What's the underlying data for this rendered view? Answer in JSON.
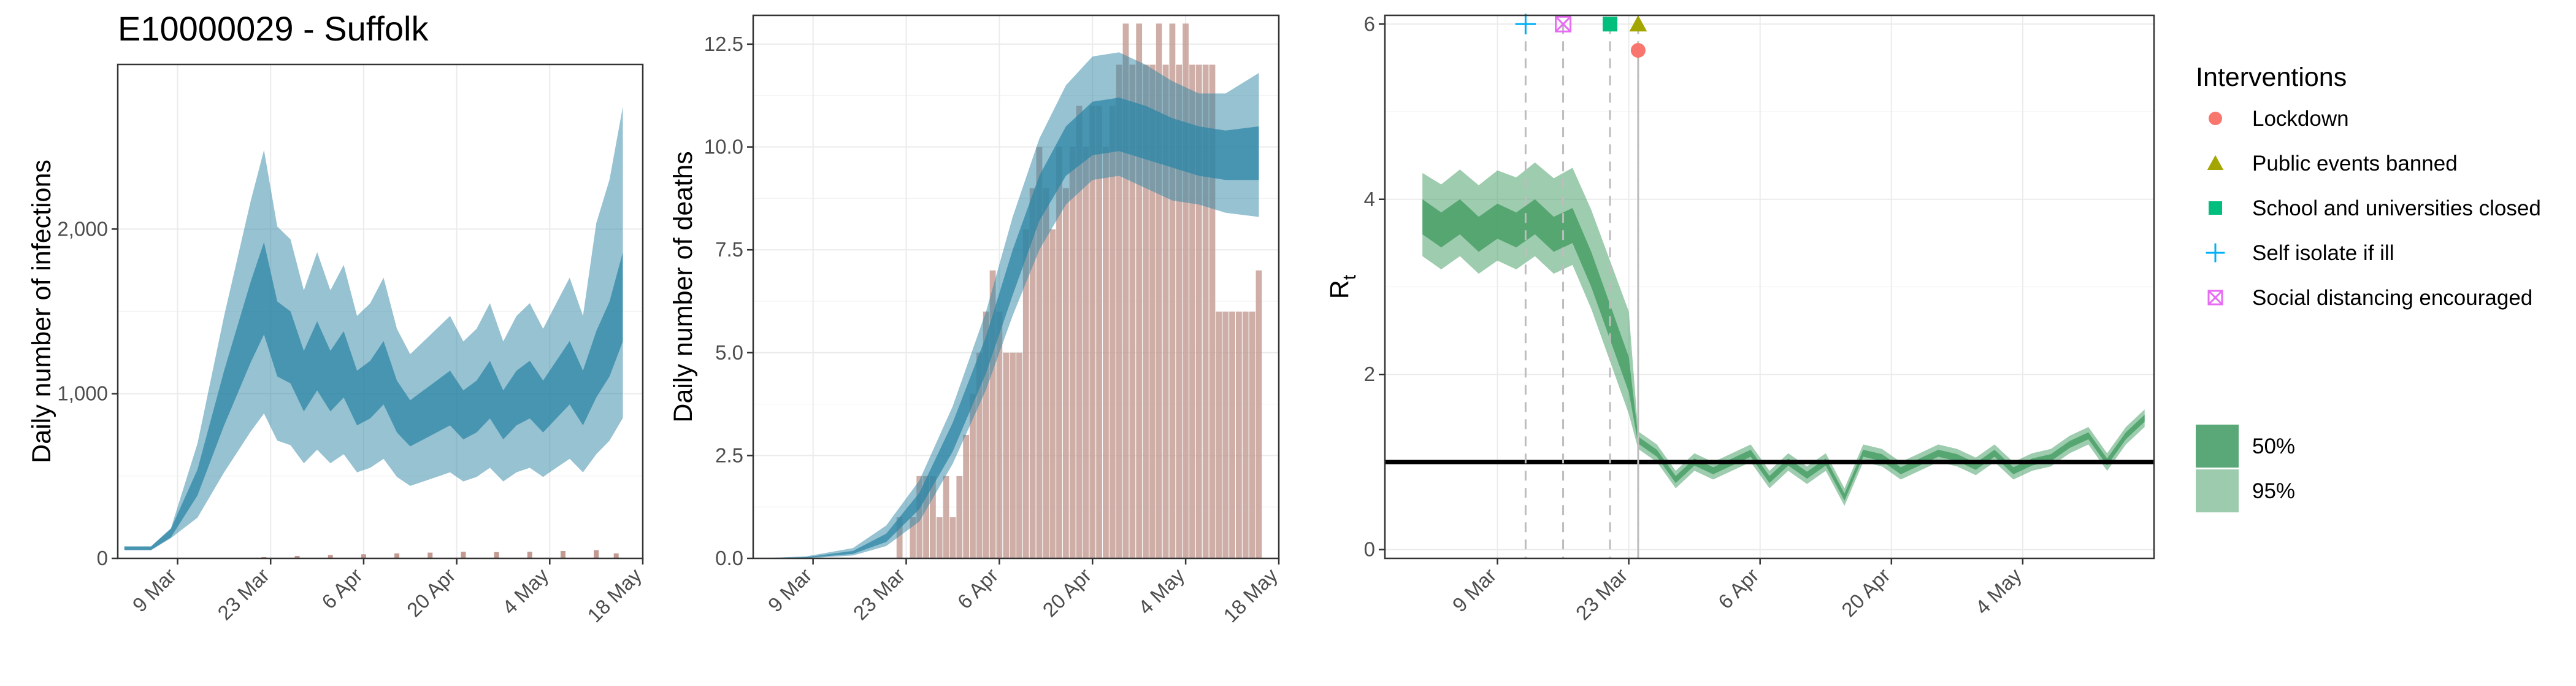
{
  "figure": {
    "title": "E10000029 - Suffolk",
    "x_tick_labels_left": [
      "9 Mar",
      "23 Mar",
      "6 Apr",
      "20 Apr",
      "4 May",
      "18 May"
    ],
    "x_tick_labels_right": [
      "9 Mar",
      "23 Mar",
      "6 Apr",
      "20 Apr",
      "4 May"
    ]
  },
  "legend": {
    "interventions_title": "Interventions",
    "items": [
      {
        "label": "Lockdown",
        "shape": "circle",
        "color": "#F8766D"
      },
      {
        "label": "Public events banned",
        "shape": "triangle",
        "color": "#A3A500"
      },
      {
        "label": "School and universities closed",
        "shape": "square",
        "color": "#00BF7D"
      },
      {
        "label": "Self isolate if ill",
        "shape": "plus",
        "color": "#00B0F6"
      },
      {
        "label": "Social distancing encouraged",
        "shape": "boxed-x",
        "color": "#E76BF3"
      }
    ],
    "bands": [
      {
        "label": "50%",
        "color": "#5aa878"
      },
      {
        "label": "95%",
        "color": "#9ccbad"
      }
    ]
  },
  "colors": {
    "infections_band": "#2e86a6",
    "deaths_band": "#2e86a6",
    "bars": "#c29a91",
    "rt_band": "#3d9a5e",
    "reference_line": "#000000",
    "intervention_line": "#bdbdbd"
  },
  "chart_data": [
    {
      "type": "area",
      "ylabel": "Daily number of infections",
      "xlim": [
        "2020-02-29",
        "2020-05-18"
      ],
      "ylim": [
        0,
        3000
      ],
      "yticks": [
        0,
        1000,
        2000
      ],
      "ytick_labels": [
        "0",
        "1,000",
        "2,000"
      ],
      "median": [
        [
          "2020-03-01",
          60
        ],
        [
          "2020-03-05",
          60
        ],
        [
          "2020-03-08",
          150
        ],
        [
          "2020-03-12",
          450
        ],
        [
          "2020-03-16",
          950
        ],
        [
          "2020-03-20",
          1400
        ],
        [
          "2020-03-22",
          1600
        ],
        [
          "2020-03-24",
          1300
        ],
        [
          "2020-03-26",
          1250
        ],
        [
          "2020-03-28",
          1050
        ],
        [
          "2020-03-30",
          1200
        ],
        [
          "2020-04-01",
          1050
        ],
        [
          "2020-04-03",
          1150
        ],
        [
          "2020-04-05",
          950
        ],
        [
          "2020-04-07",
          1000
        ],
        [
          "2020-04-09",
          1100
        ],
        [
          "2020-04-11",
          900
        ],
        [
          "2020-04-13",
          800
        ],
        [
          "2020-04-15",
          850
        ],
        [
          "2020-04-17",
          900
        ],
        [
          "2020-04-19",
          950
        ],
        [
          "2020-04-21",
          850
        ],
        [
          "2020-04-23",
          900
        ],
        [
          "2020-04-25",
          1000
        ],
        [
          "2020-04-27",
          850
        ],
        [
          "2020-04-29",
          950
        ],
        [
          "2020-05-01",
          1000
        ],
        [
          "2020-05-03",
          900
        ],
        [
          "2020-05-05",
          1000
        ],
        [
          "2020-05-07",
          1100
        ],
        [
          "2020-05-09",
          950
        ],
        [
          "2020-05-11",
          1150
        ],
        [
          "2020-05-13",
          1300
        ],
        [
          "2020-05-15",
          1550
        ]
      ],
      "band95_rel": [
        0.45,
        0.55
      ],
      "band50_rel": [
        0.15,
        0.2
      ],
      "bars": [
        [
          "2020-03-22",
          8
        ],
        [
          "2020-03-27",
          15
        ],
        [
          "2020-04-01",
          20
        ],
        [
          "2020-04-06",
          25
        ],
        [
          "2020-04-11",
          30
        ],
        [
          "2020-04-16",
          35
        ],
        [
          "2020-04-21",
          40
        ],
        [
          "2020-04-26",
          38
        ],
        [
          "2020-05-01",
          40
        ],
        [
          "2020-05-06",
          45
        ],
        [
          "2020-05-11",
          50
        ],
        [
          "2020-05-14",
          30
        ]
      ]
    },
    {
      "type": "area",
      "ylabel": "Daily number of deaths",
      "xlim": [
        "2020-02-29",
        "2020-05-18"
      ],
      "ylim": [
        0,
        13.2
      ],
      "yticks": [
        0,
        2.5,
        5,
        7.5,
        10,
        12.5
      ],
      "ytick_labels": [
        "0.0",
        "2.5",
        "5.0",
        "7.5",
        "10.0",
        "12.5"
      ],
      "median": [
        [
          "2020-03-01",
          0.0
        ],
        [
          "2020-03-08",
          0.02
        ],
        [
          "2020-03-15",
          0.15
        ],
        [
          "2020-03-20",
          0.5
        ],
        [
          "2020-03-25",
          1.4
        ],
        [
          "2020-03-30",
          3.0
        ],
        [
          "2020-04-04",
          5.0
        ],
        [
          "2020-04-08",
          7.0
        ],
        [
          "2020-04-12",
          8.8
        ],
        [
          "2020-04-16",
          9.9
        ],
        [
          "2020-04-20",
          10.5
        ],
        [
          "2020-04-24",
          10.6
        ],
        [
          "2020-04-28",
          10.4
        ],
        [
          "2020-05-02",
          10.1
        ],
        [
          "2020-05-06",
          9.9
        ],
        [
          "2020-05-10",
          9.8
        ],
        [
          "2020-05-15",
          9.9
        ]
      ],
      "upper95": [
        0.0,
        0.05,
        0.25,
        0.8,
        1.9,
        3.7,
        6.0,
        8.3,
        10.2,
        11.5,
        12.2,
        12.3,
        12.0,
        11.6,
        11.3,
        11.3,
        11.8
      ],
      "lower95": [
        0.0,
        0.0,
        0.07,
        0.3,
        0.9,
        2.3,
        4.1,
        5.9,
        7.5,
        8.6,
        9.2,
        9.3,
        9.0,
        8.7,
        8.6,
        8.4,
        8.3
      ],
      "upper50": [
        0.0,
        0.03,
        0.18,
        0.6,
        1.6,
        3.3,
        5.4,
        7.5,
        9.3,
        10.5,
        11.1,
        11.2,
        11.0,
        10.7,
        10.5,
        10.4,
        10.5
      ],
      "lower50": [
        0.0,
        0.01,
        0.11,
        0.4,
        1.2,
        2.6,
        4.5,
        6.4,
        8.2,
        9.3,
        9.8,
        9.9,
        9.7,
        9.5,
        9.3,
        9.2,
        9.2
      ],
      "bars": [
        [
          "2020-03-22",
          1
        ],
        [
          "2020-03-23",
          0
        ],
        [
          "2020-03-24",
          1
        ],
        [
          "2020-03-25",
          2
        ],
        [
          "2020-03-26",
          2
        ],
        [
          "2020-03-27",
          2
        ],
        [
          "2020-03-28",
          1
        ],
        [
          "2020-03-29",
          2
        ],
        [
          "2020-03-30",
          1
        ],
        [
          "2020-03-31",
          2
        ],
        [
          "2020-04-01",
          3
        ],
        [
          "2020-04-02",
          4
        ],
        [
          "2020-04-03",
          5
        ],
        [
          "2020-04-04",
          6
        ],
        [
          "2020-04-05",
          7
        ],
        [
          "2020-04-06",
          6
        ],
        [
          "2020-04-07",
          5
        ],
        [
          "2020-04-08",
          5
        ],
        [
          "2020-04-09",
          5
        ],
        [
          "2020-04-10",
          8
        ],
        [
          "2020-04-11",
          9
        ],
        [
          "2020-04-12",
          10
        ],
        [
          "2020-04-13",
          9
        ],
        [
          "2020-04-14",
          8
        ],
        [
          "2020-04-15",
          10
        ],
        [
          "2020-04-16",
          9
        ],
        [
          "2020-04-17",
          10
        ],
        [
          "2020-04-18",
          11
        ],
        [
          "2020-04-19",
          10
        ],
        [
          "2020-04-20",
          11
        ],
        [
          "2020-04-21",
          11
        ],
        [
          "2020-04-22",
          10
        ],
        [
          "2020-04-23",
          11
        ],
        [
          "2020-04-24",
          12
        ],
        [
          "2020-04-25",
          13
        ],
        [
          "2020-04-26",
          12
        ],
        [
          "2020-04-27",
          13
        ],
        [
          "2020-04-28",
          12
        ],
        [
          "2020-04-29",
          12
        ],
        [
          "2020-04-30",
          13
        ],
        [
          "2020-05-01",
          12
        ],
        [
          "2020-05-02",
          13
        ],
        [
          "2020-05-03",
          12
        ],
        [
          "2020-05-04",
          13
        ],
        [
          "2020-05-05",
          12
        ],
        [
          "2020-05-06",
          12
        ],
        [
          "2020-05-07",
          12
        ],
        [
          "2020-05-08",
          12
        ],
        [
          "2020-05-09",
          6
        ],
        [
          "2020-05-10",
          6
        ],
        [
          "2020-05-11",
          6
        ],
        [
          "2020-05-12",
          6
        ],
        [
          "2020-05-13",
          6
        ],
        [
          "2020-05-14",
          6
        ],
        [
          "2020-05-15",
          7
        ]
      ]
    },
    {
      "type": "area",
      "ylabel": "R",
      "ylabel_subscript": "t",
      "xlim": [
        "2020-02-26",
        "2020-05-18"
      ],
      "ylim": [
        -0.1,
        6.1
      ],
      "yticks": [
        0,
        2,
        4,
        6
      ],
      "ytick_labels": [
        "0",
        "2",
        "4",
        "6"
      ],
      "reference_line": 1,
      "median": [
        [
          "2020-03-01",
          3.8
        ],
        [
          "2020-03-03",
          3.65
        ],
        [
          "2020-03-05",
          3.8
        ],
        [
          "2020-03-07",
          3.6
        ],
        [
          "2020-03-09",
          3.75
        ],
        [
          "2020-03-11",
          3.65
        ],
        [
          "2020-03-13",
          3.8
        ],
        [
          "2020-03-15",
          3.6
        ],
        [
          "2020-03-17",
          3.7
        ],
        [
          "2020-03-19",
          3.2
        ],
        [
          "2020-03-21",
          2.6
        ],
        [
          "2020-03-23",
          2.0
        ],
        [
          "2020-03-24",
          1.25
        ],
        [
          "2020-03-26",
          1.1
        ],
        [
          "2020-03-28",
          0.8
        ],
        [
          "2020-03-30",
          1.0
        ],
        [
          "2020-04-01",
          0.9
        ],
        [
          "2020-04-03",
          1.0
        ],
        [
          "2020-04-05",
          1.1
        ],
        [
          "2020-04-07",
          0.8
        ],
        [
          "2020-04-09",
          1.0
        ],
        [
          "2020-04-11",
          0.85
        ],
        [
          "2020-04-13",
          1.0
        ],
        [
          "2020-04-15",
          0.6
        ],
        [
          "2020-04-17",
          1.1
        ],
        [
          "2020-04-19",
          1.05
        ],
        [
          "2020-04-21",
          0.9
        ],
        [
          "2020-04-23",
          1.0
        ],
        [
          "2020-04-25",
          1.1
        ],
        [
          "2020-04-27",
          1.05
        ],
        [
          "2020-04-29",
          0.95
        ],
        [
          "2020-05-01",
          1.1
        ],
        [
          "2020-05-03",
          0.9
        ],
        [
          "2020-05-05",
          1.0
        ],
        [
          "2020-05-07",
          1.05
        ],
        [
          "2020-05-09",
          1.2
        ],
        [
          "2020-05-11",
          1.3
        ],
        [
          "2020-05-13",
          1.0
        ],
        [
          "2020-05-15",
          1.3
        ],
        [
          "2020-05-17",
          1.5
        ]
      ],
      "interventions": [
        {
          "name": "Self isolate if ill",
          "date": "2020-03-12",
          "marker_y": 6.0
        },
        {
          "name": "Social distancing encouraged",
          "date": "2020-03-16",
          "marker_y": 6.0
        },
        {
          "name": "School and universities closed",
          "date": "2020-03-21",
          "marker_y": 6.0
        },
        {
          "name": "Public events banned",
          "date": "2020-03-24",
          "marker_y": 6.0
        },
        {
          "name": "Lockdown",
          "date": "2020-03-24",
          "marker_y": 5.7
        }
      ]
    }
  ]
}
